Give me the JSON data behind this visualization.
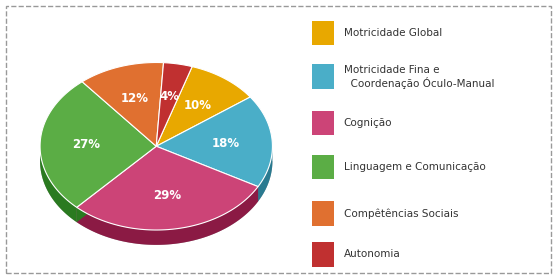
{
  "legend_labels": [
    "Motricidade Global",
    "Motricidade Fina e\n  Coordenação Óculo-Manual",
    "Cognição",
    "Linguagem e Comunicação",
    "Compêtências Sociais",
    "Autonomia"
  ],
  "values": [
    10,
    18,
    29,
    27,
    12,
    4
  ],
  "colors": [
    "#E8A800",
    "#4AAEC8",
    "#CC4477",
    "#5BAD45",
    "#E07030",
    "#C03030"
  ],
  "dark_colors": [
    "#A07800",
    "#2A7A90",
    "#8B1A44",
    "#2A7A20",
    "#A04010",
    "#801010"
  ],
  "background_color": "#FFFFFF",
  "pct_labels": [
    "10%",
    "18%",
    "29%",
    "27%",
    "12%",
    "4%"
  ],
  "startangle": 72,
  "depth": 0.055,
  "figsize": [
    5.58,
    2.79
  ],
  "dpi": 100
}
